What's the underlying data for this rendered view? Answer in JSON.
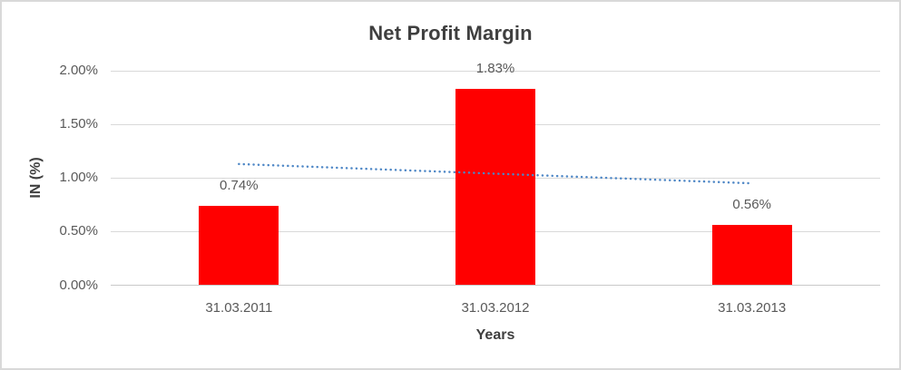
{
  "chart_data": {
    "type": "bar",
    "title": "Net Profit Margin",
    "xlabel": "Years",
    "ylabel": "IN (%)",
    "categories": [
      "31.03.2011",
      "31.03.2012",
      "31.03.2013"
    ],
    "values": [
      0.74,
      1.83,
      0.56
    ],
    "data_labels": [
      "0.74%",
      "1.83%",
      "0.56%"
    ],
    "y_ticks": [
      {
        "value": 0.0,
        "label": "0.00%"
      },
      {
        "value": 0.5,
        "label": "0.50%"
      },
      {
        "value": 1.0,
        "label": "1.00%"
      },
      {
        "value": 1.5,
        "label": "1.50%"
      },
      {
        "value": 2.0,
        "label": "2.00%"
      }
    ],
    "ylim": [
      0,
      2.0
    ],
    "grid": true,
    "legend": "none",
    "trendline": {
      "type": "linear",
      "style": "dotted",
      "start_value": 1.13,
      "end_value": 0.95
    },
    "colors": {
      "bar": "#FF0000",
      "trendline": "#4E87C6",
      "gridline": "#D9D9D9",
      "axis_line": "#C9C9C9",
      "tick_text": "#595959",
      "title_text": "#3F3F3F",
      "border": "#D9D9D9",
      "background": "#FFFFFF"
    }
  }
}
